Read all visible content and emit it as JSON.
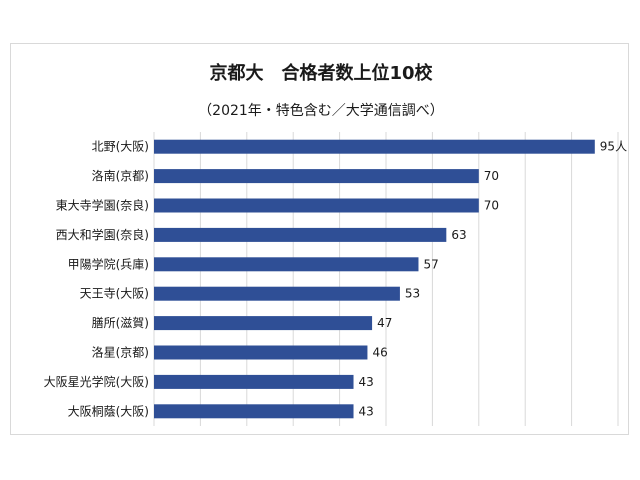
{
  "chart_data": {
    "type": "bar",
    "orientation": "horizontal",
    "title": "京都大　合格者数上位10校",
    "subtitle": "（2021年・特色含む／大学通信調べ）",
    "categories": [
      "北野(大阪)",
      "洛南(京都)",
      "東大寺学園(奈良)",
      "西大和学園(奈良)",
      "甲陽学院(兵庫)",
      "天王寺(大阪)",
      "膳所(滋賀)",
      "洛星(京都)",
      "大阪星光学院(大阪)",
      "大阪桐蔭(大阪)"
    ],
    "values": [
      95,
      70,
      70,
      63,
      57,
      53,
      47,
      46,
      43,
      43
    ],
    "value_labels": [
      "95人",
      "70",
      "70",
      "63",
      "57",
      "53",
      "47",
      "46",
      "43",
      "43"
    ],
    "xlim": [
      0,
      100
    ],
    "grid": true,
    "legend": "none",
    "bar_color": "#2f4f96",
    "grid_color": "#d9d9d9"
  }
}
